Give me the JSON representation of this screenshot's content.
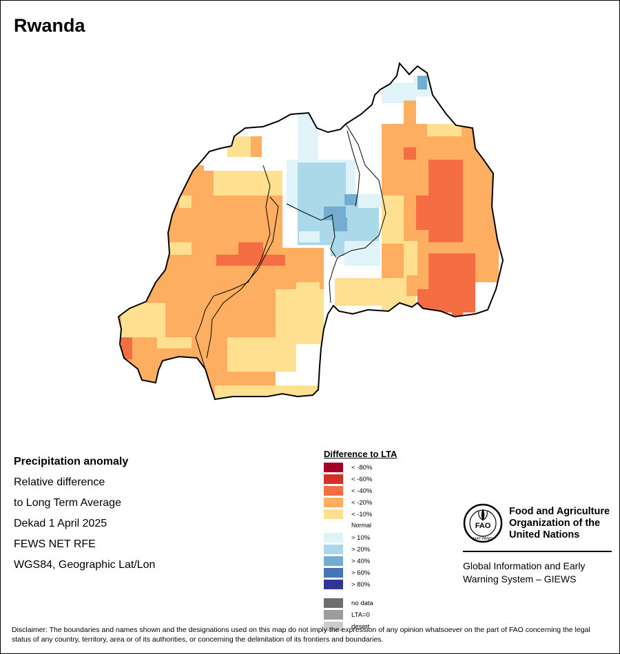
{
  "title": "Rwanda",
  "info": {
    "heading": "Precipitation anomaly",
    "line1": "Relative difference",
    "line2": "to Long Term Average",
    "period": "Dekad 1 April 2025",
    "source": "FEWS NET RFE",
    "projection": "WGS84, Geographic Lat/Lon"
  },
  "legend": {
    "title": "Difference to LTA",
    "items": [
      {
        "label": "< -80%",
        "color": "#a50026"
      },
      {
        "label": "< -60%",
        "color": "#d73027"
      },
      {
        "label": "< -40%",
        "color": "#f46d43"
      },
      {
        "label": "< -20%",
        "color": "#fdae61"
      },
      {
        "label": "< -10%",
        "color": "#fee090"
      },
      {
        "label": "Normal",
        "color": "#ffffff"
      },
      {
        "label": "> 10%",
        "color": "#e0f3f8"
      },
      {
        "label": "> 20%",
        "color": "#abd9e9"
      },
      {
        "label": "> 40%",
        "color": "#74add1"
      },
      {
        "label": "> 60%",
        "color": "#4575b4"
      },
      {
        "label": "> 80%",
        "color": "#313695"
      }
    ],
    "extra": [
      {
        "label": "no data",
        "color": "#6e6e6e"
      },
      {
        "label": "LTA=0",
        "color": "#9c9c9c"
      },
      {
        "label": "desert",
        "color": "#cccccc"
      }
    ]
  },
  "fao": {
    "org_line1": "Food and Agriculture",
    "org_line2": "Organization of the",
    "org_line3": "United Nations",
    "logo_text": "FAO",
    "logo_motto": "FIAT PANIS",
    "giews_line1": "Global Information and Early",
    "giews_line2": "Warning System – GIEWS"
  },
  "disclaimer": "Disclaimer: The boundaries and names shown and the designations used on this map do not imply the expression of any opinion whatsoever on the part of FAO concerning the legal status of any country, territory, area or of its authorities, or concerning the delimitation of its frontiers and boundaries."
}
